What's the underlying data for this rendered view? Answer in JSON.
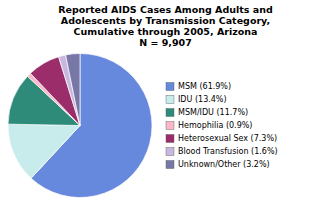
{
  "chart_data": {
    "type": "pie",
    "title": "Reported AIDS Cases Among Adults and\nAdolescents by Transmission Category,\nCumulative through 2005, Arizona\nN = 9,907",
    "categories": [
      "MSM (61.9%)",
      "IDU (13.4%)",
      "MSM/IDU (11.7%)",
      "Hemophilia (0.9%)",
      "Heterosexual Sex (7.3%)",
      "Blood Transfusion (1.6%)",
      "Unknown/Other (3.2%)"
    ],
    "values": [
      61.9,
      13.4,
      11.7,
      0.9,
      7.3,
      1.6,
      3.2
    ],
    "colors": [
      "#6688dd",
      "#c8ecec",
      "#2e8b7a",
      "#f8b8c8",
      "#9b2d6b",
      "#c8b8e0",
      "#7878a8"
    ],
    "legend": "right"
  }
}
